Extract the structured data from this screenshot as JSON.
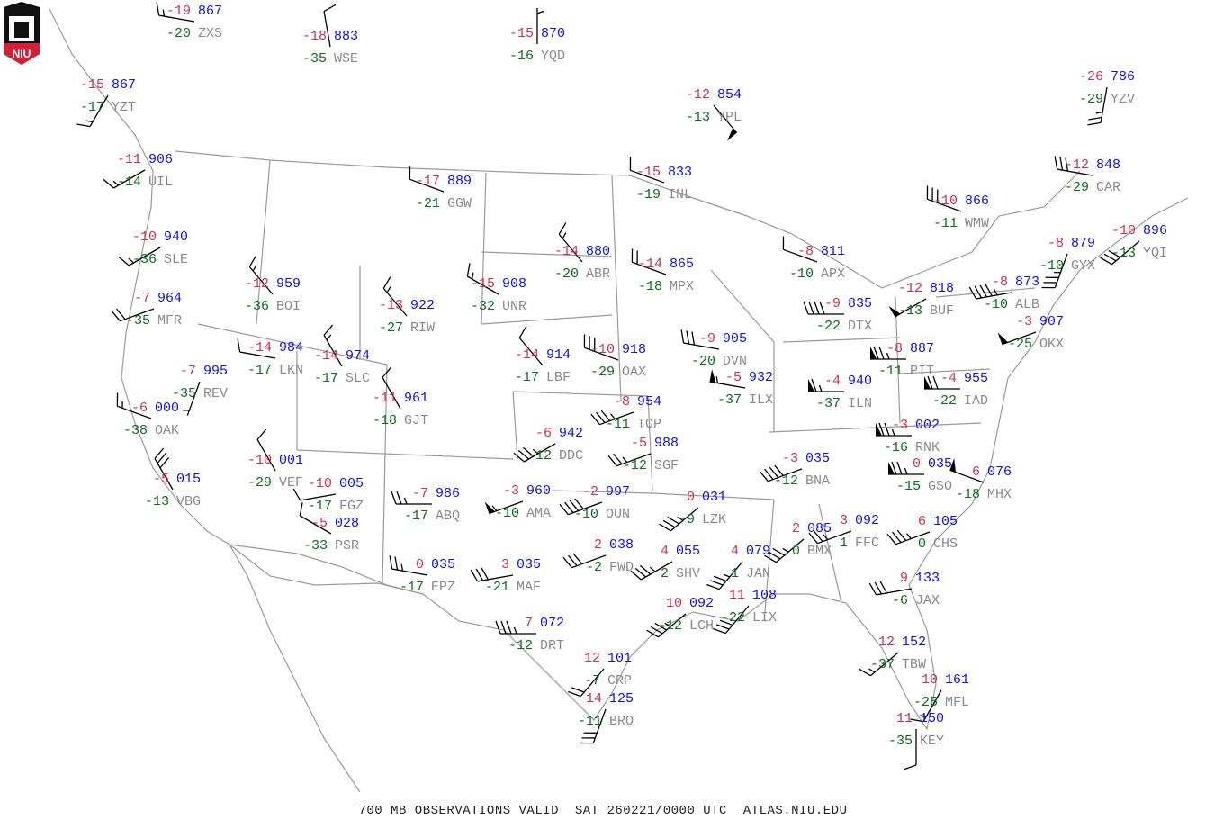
{
  "logo_text": "NIU",
  "footer": "700 MB OBSERVATIONS VALID  SAT 260221/0000 UTC  ATLAS.NIU.EDU",
  "colors": {
    "temperature": "#d0304f",
    "height": "#1010f0",
    "dewpoint": "#0a6e1e",
    "station_id": "#8a8a8a",
    "map_lines": "#9a9a9a",
    "wind_barb": "#000000"
  },
  "stations": [
    {
      "id": "ZXS",
      "t": "-19",
      "h": "867",
      "td": "-20",
      "wdir": 280,
      "wspd": 15
    },
    {
      "id": "WSE",
      "t": "-18",
      "h": "883",
      "td": "-35",
      "wdir": 350,
      "wspd": 10
    },
    {
      "id": "YZT",
      "t": "-15",
      "h": "867",
      "td": "-17",
      "wdir": 210,
      "wspd": 15
    },
    {
      "id": "UIL",
      "t": "-11",
      "h": "906",
      "td": "-14",
      "wdir": 240,
      "wspd": 15
    },
    {
      "id": "SLE",
      "t": "-10",
      "h": "940",
      "td": "-36",
      "wdir": 240,
      "wspd": 15
    },
    {
      "id": "MFR",
      "t": "-7",
      "h": "964",
      "td": "-35",
      "wdir": 250,
      "wspd": 20
    },
    {
      "id": "OAK",
      "t": "-6",
      "h": "000",
      "td": "-38",
      "wdir": 290,
      "wspd": 15
    },
    {
      "id": "VBG",
      "t": "-5",
      "h": "015",
      "td": "-13",
      "wdir": 330,
      "wspd": 30
    },
    {
      "id": "REV",
      "t": "-7",
      "h": "995",
      "td": "-35",
      "wdir": 200,
      "wspd": 5
    },
    {
      "id": "BOI",
      "t": "-12",
      "h": "959",
      "td": "-36",
      "wdir": 320,
      "wspd": 15
    },
    {
      "id": "LKN",
      "t": "-14",
      "h": "984",
      "td": "-17",
      "wdir": 280,
      "wspd": 10
    },
    {
      "id": "SLC",
      "t": "-14",
      "h": "974",
      "td": "-17",
      "wdir": 330,
      "wspd": 15
    },
    {
      "id": "VEF",
      "t": "-10",
      "h": "001",
      "td": "-29",
      "wdir": 330,
      "wspd": 10
    },
    {
      "id": "FGZ",
      "t": "-10",
      "h": "005",
      "td": "-17",
      "wdir": 260,
      "wspd": 10
    },
    {
      "id": "PSR",
      "t": "-5",
      "h": "028",
      "td": "-33",
      "wdir": 300,
      "wspd": 10
    },
    {
      "id": "YQD",
      "t": "-15",
      "h": "870",
      "td": "-16",
      "wdir": 360,
      "wspd": 5
    },
    {
      "id": "GGW",
      "t": "-17",
      "h": "889",
      "td": "-21",
      "wdir": 290,
      "wspd": 10
    },
    {
      "id": "RIW",
      "t": "-13",
      "h": "922",
      "td": "-27",
      "wdir": 320,
      "wspd": 15
    },
    {
      "id": "GJT",
      "t": "-11",
      "h": "961",
      "td": "-18",
      "wdir": 330,
      "wspd": 10
    },
    {
      "id": "ABQ",
      "t": "-7",
      "h": "986",
      "td": "-17",
      "wdir": 270,
      "wspd": 25
    },
    {
      "id": "EPZ",
      "t": "0",
      "h": "035",
      "td": "-17",
      "wdir": 280,
      "wspd": 25
    },
    {
      "id": "UNR",
      "t": "-15",
      "h": "908",
      "td": "-32",
      "wdir": 300,
      "wspd": 15
    },
    {
      "id": "ABR",
      "t": "-14",
      "h": "880",
      "td": "-20",
      "wdir": 320,
      "wspd": 15
    },
    {
      "id": "LBF",
      "t": "-14",
      "h": "914",
      "td": "-17",
      "wdir": 320,
      "wspd": 10
    },
    {
      "id": "OAX",
      "t": "-10",
      "h": "918",
      "td": "-29",
      "wdir": 290,
      "wspd": 30
    },
    {
      "id": "DDC",
      "t": "-6",
      "h": "942",
      "td": "-12",
      "wdir": 240,
      "wspd": 35
    },
    {
      "id": "AMA",
      "t": "-3",
      "h": "960",
      "td": "-10",
      "wdir": 250,
      "wspd": 55
    },
    {
      "id": "OUN",
      "t": "-2",
      "h": "997",
      "td": "-10",
      "wdir": 250,
      "wspd": 40
    },
    {
      "id": "MAF",
      "t": "3",
      "h": "035",
      "td": "-21",
      "wdir": 260,
      "wspd": 30
    },
    {
      "id": "FWD",
      "t": "2",
      "h": "038",
      "td": "-2",
      "wdir": 250,
      "wspd": 30
    },
    {
      "id": "DRT",
      "t": "7",
      "h": "072",
      "td": "-12",
      "wdir": 270,
      "wspd": 35
    },
    {
      "id": "CRP",
      "t": "12",
      "h": "101",
      "td": "-7",
      "wdir": 220,
      "wspd": 20
    },
    {
      "id": "BRO",
      "t": "14",
      "h": "125",
      "td": "-11",
      "wdir": 200,
      "wspd": 30
    },
    {
      "id": "YPL",
      "t": "-12",
      "h": "854",
      "td": "-13",
      "wdir": 140,
      "wspd": 50
    },
    {
      "id": "INL",
      "t": "-15",
      "h": "833",
      "td": "-19",
      "wdir": 290,
      "wspd": 10
    },
    {
      "id": "MPX",
      "t": "-14",
      "h": "865",
      "td": "-18",
      "wdir": 290,
      "wspd": 20
    },
    {
      "id": "DVN",
      "t": "-9",
      "h": "905",
      "td": "-20",
      "wdir": 280,
      "wspd": 30
    },
    {
      "id": "TOP",
      "t": "-8",
      "h": "954",
      "td": "-11",
      "wdir": 250,
      "wspd": 35
    },
    {
      "id": "SGF",
      "t": "-5",
      "h": "988",
      "td": "-12",
      "wdir": 250,
      "wspd": 25
    },
    {
      "id": "LZK",
      "t": "0",
      "h": "031",
      "td": "-9",
      "wdir": 230,
      "wspd": 35
    },
    {
      "id": "SHV",
      "t": "4",
      "h": "055",
      "td": "2",
      "wdir": 240,
      "wspd": 35
    },
    {
      "id": "JAN",
      "t": "4",
      "h": "079",
      "td": "1",
      "wdir": 220,
      "wspd": 35
    },
    {
      "id": "LCH",
      "t": "10",
      "h": "092",
      "td": "-12",
      "wdir": 230,
      "wspd": 35
    },
    {
      "id": "LIX",
      "t": "11",
      "h": "108",
      "td": "-22",
      "wdir": 220,
      "wspd": 30
    },
    {
      "id": "ILX",
      "t": "-5",
      "h": "932",
      "td": "-37",
      "wdir": 280,
      "wspd": 55
    },
    {
      "id": "APX",
      "t": "-8",
      "h": "811",
      "td": "-10",
      "wdir": 290,
      "wspd": 10
    },
    {
      "id": "DTX",
      "t": "-9",
      "h": "835",
      "td": "-22",
      "wdir": 270,
      "wspd": 40
    },
    {
      "id": "ILN",
      "t": "-4",
      "h": "940",
      "td": "-37",
      "wdir": 270,
      "wspd": 65
    },
    {
      "id": "BUF",
      "t": "-12",
      "h": "818",
      "td": "-13",
      "wdir": 240,
      "wspd": 50
    },
    {
      "id": "PIT",
      "t": "-8",
      "h": "887",
      "td": "-11",
      "wdir": 270,
      "wspd": 75
    },
    {
      "id": "IAD",
      "t": "-4",
      "h": "955",
      "td": "-22",
      "wdir": 270,
      "wspd": 70
    },
    {
      "id": "RNK",
      "t": "-3",
      "h": "002",
      "td": "-16",
      "wdir": 270,
      "wspd": 75
    },
    {
      "id": "GSO",
      "t": "0",
      "h": "035",
      "td": "-15",
      "wdir": 270,
      "wspd": 75
    },
    {
      "id": "MHX",
      "t": "6",
      "h": "076",
      "td": "-18",
      "wdir": 290,
      "wspd": 50
    },
    {
      "id": "BNA",
      "t": "-3",
      "h": "035",
      "td": "-12",
      "wdir": 250,
      "wspd": 40
    },
    {
      "id": "BMX",
      "t": "2",
      "h": "085",
      "td": "0",
      "wdir": 230,
      "wspd": 35
    },
    {
      "id": "FFC",
      "t": "3",
      "h": "092",
      "td": "1",
      "wdir": 250,
      "wspd": 25
    },
    {
      "id": "CHS",
      "t": "6",
      "h": "105",
      "td": "0",
      "wdir": 250,
      "wspd": 35
    },
    {
      "id": "JAX",
      "t": "9",
      "h": "133",
      "td": "-6",
      "wdir": 260,
      "wspd": 30
    },
    {
      "id": "TBW",
      "t": "12",
      "h": "152",
      "td": "-37",
      "wdir": 230,
      "wspd": 15
    },
    {
      "id": "MFL",
      "t": "10",
      "h": "161",
      "td": "-25",
      "wdir": 210,
      "wspd": 15
    },
    {
      "id": "KEY",
      "t": "11",
      "h": "150",
      "td": "-35",
      "wdir": 180,
      "wspd": 10
    },
    {
      "id": "WMW",
      "t": "-10",
      "h": "866",
      "td": "-11",
      "wdir": 290,
      "wspd": 30
    },
    {
      "id": "ALB",
      "t": "-8",
      "h": "873",
      "td": "-10",
      "wdir": 260,
      "wspd": 45
    },
    {
      "id": "GYX",
      "t": "-8",
      "h": "879",
      "td": "-10",
      "wdir": 200,
      "wspd": 35
    },
    {
      "id": "CAR",
      "t": "-12",
      "h": "848",
      "td": "-29",
      "wdir": 280,
      "wspd": 30
    },
    {
      "id": "YQI",
      "t": "-10",
      "h": "896",
      "td": "-13",
      "wdir": 230,
      "wspd": 30
    },
    {
      "id": "OKX",
      "t": "-3",
      "h": "907",
      "td": "-25",
      "wdir": 250,
      "wspd": 50
    },
    {
      "id": "YZV",
      "t": "-26",
      "h": "786",
      "td": "-29",
      "wdir": 190,
      "wspd": 25
    }
  ]
}
